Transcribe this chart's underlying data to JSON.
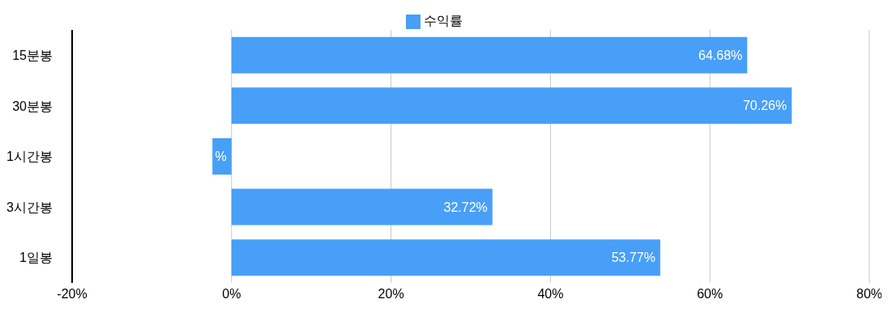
{
  "chart_data": {
    "type": "bar",
    "orientation": "horizontal",
    "categories": [
      "15분봉",
      "30분봉",
      "1시간봉",
      "3시간봉",
      "1일봉"
    ],
    "series": [
      {
        "name": "수익률",
        "color": "#479ff8",
        "values": [
          64.68,
          70.26,
          -2.4,
          32.72,
          53.77
        ],
        "value_labels": [
          "64.68%",
          "70.26%",
          "%",
          "32.72%",
          "53.77%"
        ]
      }
    ],
    "xlim": [
      -20,
      80
    ],
    "xticks": [
      {
        "value": -20,
        "label": "-20%"
      },
      {
        "value": 0,
        "label": "0%"
      },
      {
        "value": 20,
        "label": "20%"
      },
      {
        "value": 40,
        "label": "40%"
      },
      {
        "value": 60,
        "label": "60%"
      },
      {
        "value": 80,
        "label": "80%"
      }
    ],
    "grid": "x",
    "legend": "top"
  }
}
